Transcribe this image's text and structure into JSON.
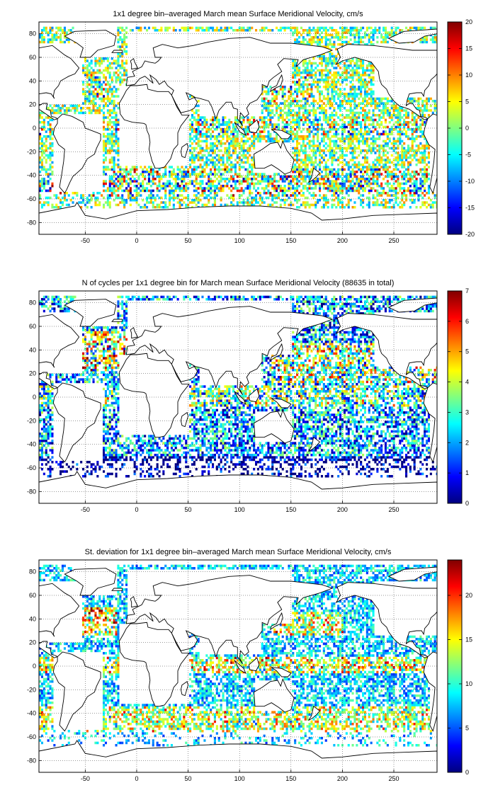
{
  "figure": {
    "background": "#ffffff"
  },
  "chart_data": [
    {
      "type": "heatmap",
      "title": "1x1 degree bin–averaged March mean Surface Meridional Velocity, cm/s",
      "xlabel": "",
      "ylabel": "",
      "xlim": [
        -95,
        292
      ],
      "ylim": [
        -90,
        90
      ],
      "xticks": [
        -50,
        0,
        50,
        100,
        150,
        200,
        250
      ],
      "yticks": [
        -80,
        -60,
        -40,
        -20,
        0,
        20,
        40,
        60,
        80
      ],
      "grid": true,
      "colorbar": {
        "min": -20,
        "max": 20,
        "ticks": [
          -20,
          -15,
          -10,
          -5,
          0,
          5,
          10,
          15,
          20
        ],
        "colormap": "jet"
      },
      "field": "signed"
    },
    {
      "type": "heatmap",
      "title": "N of cycles per 1x1 degree bin for March mean Surface Meridional Velocity (88635 in total)",
      "xlabel": "",
      "ylabel": "",
      "xlim": [
        -95,
        292
      ],
      "ylim": [
        -90,
        90
      ],
      "xticks": [
        -50,
        0,
        50,
        100,
        150,
        200,
        250
      ],
      "yticks": [
        -80,
        -60,
        -40,
        -20,
        0,
        20,
        40,
        60,
        80
      ],
      "grid": true,
      "colorbar": {
        "min": 0,
        "max": 7,
        "ticks": [
          0,
          1,
          2,
          3,
          4,
          5,
          6,
          7
        ],
        "colormap": "jet"
      },
      "field": "count"
    },
    {
      "type": "heatmap",
      "title": "St. deviation for 1x1 degree bin–averaged March mean Surface Meridional Velocity, cm/s",
      "xlabel": "",
      "ylabel": "",
      "xlim": [
        -95,
        292
      ],
      "ylim": [
        -90,
        90
      ],
      "xticks": [
        -50,
        0,
        50,
        100,
        150,
        200,
        250
      ],
      "yticks": [
        -80,
        -60,
        -40,
        -20,
        0,
        20,
        40,
        60,
        80
      ],
      "grid": true,
      "colorbar": {
        "min": 0,
        "max": 24,
        "ticks": [
          0,
          5,
          10,
          15,
          20
        ],
        "colormap": "jet"
      },
      "field": "std"
    }
  ]
}
